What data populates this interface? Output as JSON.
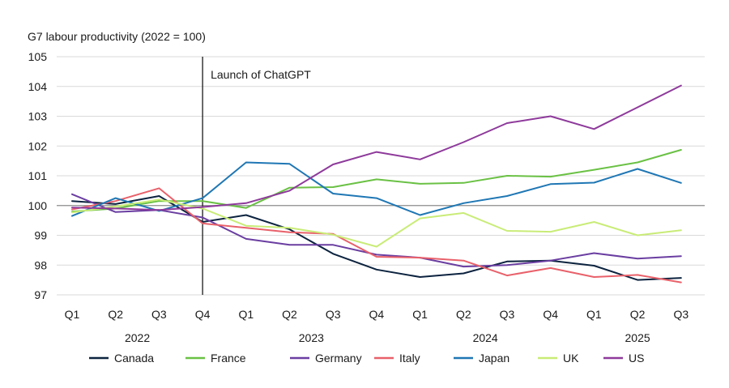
{
  "chart_data": {
    "type": "line",
    "title": "G7 labour productivity (2022 = 100)",
    "xlabel": "",
    "ylabel": "",
    "ylim": [
      97,
      105
    ],
    "yticks": [
      97,
      98,
      99,
      100,
      101,
      102,
      103,
      104,
      105
    ],
    "grid": true,
    "legend_position": "bottom",
    "quarters": [
      "Q1",
      "Q2",
      "Q3",
      "Q4",
      "Q1",
      "Q2",
      "Q3",
      "Q4",
      "Q1",
      "Q2",
      "Q3",
      "Q4",
      "Q1",
      "Q2",
      "Q3"
    ],
    "years": [
      {
        "label": "2022",
        "start": 0,
        "end": 3
      },
      {
        "label": "2023",
        "start": 4,
        "end": 7
      },
      {
        "label": "2024",
        "start": 8,
        "end": 11
      },
      {
        "label": "2025",
        "start": 12,
        "end": 14
      }
    ],
    "annotation": {
      "label": "Launch of ChatGPT",
      "at": 3
    },
    "reference_line": 100,
    "series": [
      {
        "name": "Canada",
        "color": "#0c233f",
        "values": [
          100.15,
          100.05,
          100.32,
          99.45,
          99.68,
          99.2,
          98.38,
          97.85,
          97.6,
          97.72,
          98.12,
          98.15,
          97.98,
          97.5,
          97.57
        ]
      },
      {
        "name": "France",
        "color": "#6ac144",
        "values": [
          99.8,
          99.9,
          100.15,
          100.15,
          99.92,
          100.6,
          100.62,
          100.88,
          100.73,
          100.76,
          101.0,
          100.97,
          101.2,
          101.45,
          101.87
        ]
      },
      {
        "name": "Germany",
        "color": "#6a3ea1",
        "values": [
          100.38,
          99.78,
          99.85,
          99.6,
          98.88,
          98.68,
          98.68,
          98.35,
          98.25,
          97.95,
          98.0,
          98.15,
          98.4,
          98.22,
          98.3
        ]
      },
      {
        "name": "Italy",
        "color": "#e8616a",
        "values": [
          99.87,
          100.15,
          100.58,
          99.4,
          99.25,
          99.1,
          99.05,
          98.28,
          98.25,
          98.15,
          97.65,
          97.9,
          97.6,
          97.67,
          97.42
        ]
      },
      {
        "name": "Japan",
        "color": "#1f77b4",
        "values": [
          99.65,
          100.25,
          99.82,
          100.25,
          101.45,
          101.4,
          100.4,
          100.25,
          99.68,
          100.08,
          100.32,
          100.72,
          100.77,
          101.23,
          100.76
        ]
      },
      {
        "name": "UK",
        "color": "#c9ec77",
        "values": [
          99.77,
          99.97,
          100.2,
          99.9,
          99.32,
          99.25,
          99.02,
          98.62,
          99.57,
          99.75,
          99.15,
          99.12,
          99.45,
          99.0,
          99.17
        ]
      },
      {
        "name": "US",
        "color": "#8e3a9b",
        "values": [
          99.93,
          99.9,
          99.85,
          99.95,
          100.08,
          100.5,
          101.38,
          101.8,
          101.55,
          102.13,
          102.77,
          103.0,
          102.57,
          103.3,
          104.03
        ]
      }
    ]
  }
}
